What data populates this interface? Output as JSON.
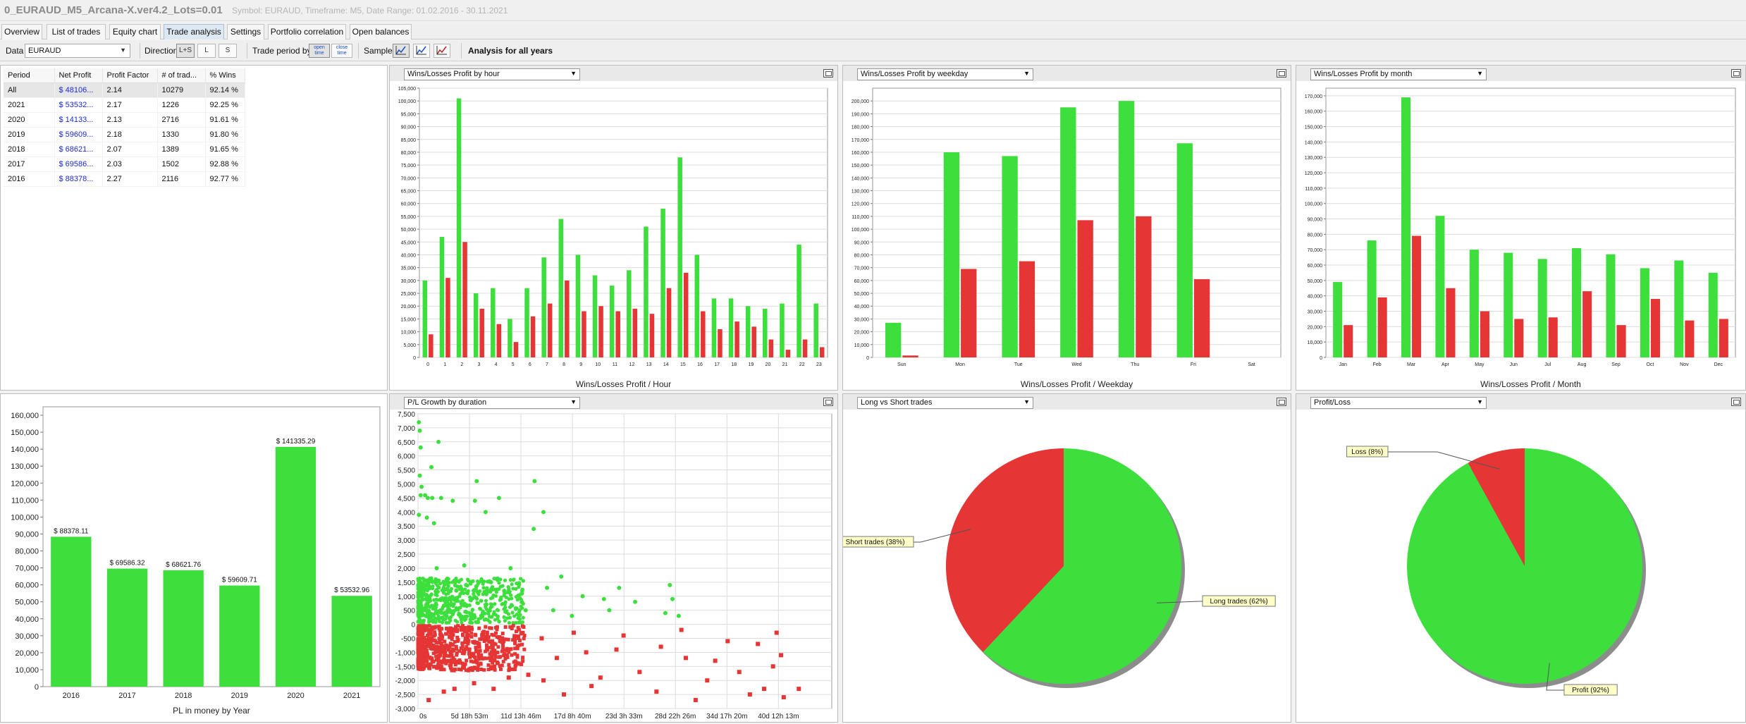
{
  "window": {
    "title": "0_EURAUD_M5_Arcana-X.ver4.2_Lots=0.01",
    "subtitle": "Symbol: EURAUD, Timeframe: M5, Date Range: 01.02.2016 - 30.11.2021"
  },
  "tabs": [
    {
      "label": "Overview"
    },
    {
      "label": "List of trades"
    },
    {
      "label": "Equity chart"
    },
    {
      "label": "Trade analysis",
      "active": true
    },
    {
      "label": "Settings"
    },
    {
      "label": "Portfolio correlation"
    },
    {
      "label": "Open balances"
    }
  ],
  "toolbar": {
    "data_label": "Data",
    "data_value": "EURAUD",
    "direction_label": "Direction",
    "directions": [
      "L+S",
      "L",
      "S"
    ],
    "trade_period_label": "Trade period by",
    "open_time": "open time",
    "close_time": "close time",
    "sample_label": "Sample",
    "analysis_title": "Analysis for all years"
  },
  "period_table": {
    "columns": [
      "Period",
      "Net Profit",
      "Profit Factor",
      "# of trad...",
      "% Wins"
    ],
    "rows": [
      [
        "All",
        "$ 48106...",
        "2.14",
        "10279",
        "92.14 %"
      ],
      [
        "2021",
        "$ 53532...",
        "2.17",
        "1226",
        "92.25 %"
      ],
      [
        "2020",
        "$ 14133...",
        "2.13",
        "2716",
        "91.61 %"
      ],
      [
        "2019",
        "$ 59609...",
        "2.18",
        "1330",
        "91.80 %"
      ],
      [
        "2018",
        "$ 68621...",
        "2.07",
        "1389",
        "91.65 %"
      ],
      [
        "2017",
        "$ 69586...",
        "2.03",
        "1502",
        "92.88 %"
      ],
      [
        "2016",
        "$ 88378...",
        "2.27",
        "2116",
        "92.77 %"
      ]
    ]
  },
  "colors": {
    "win": "#3ddf3d",
    "loss": "#e53535",
    "grid": "#dcdcdc"
  },
  "panels": {
    "hour": {
      "select": "Wins/Losses Profit by hour"
    },
    "weekday": {
      "select": "Wins/Losses Profit by weekday"
    },
    "month": {
      "select": "Wins/Losses Profit by month"
    },
    "duration": {
      "select": "P/L Growth by duration"
    },
    "longshort": {
      "select": "Long vs Short trades"
    },
    "profitloss": {
      "select": "Profit/Loss"
    }
  },
  "chart_data": [
    {
      "id": "hour",
      "type": "bar",
      "xlabel": "Wins/Losses Profit / Hour",
      "categories": [
        "0",
        "1",
        "2",
        "3",
        "4",
        "5",
        "6",
        "7",
        "8",
        "9",
        "10",
        "11",
        "12",
        "13",
        "14",
        "15",
        "16",
        "17",
        "18",
        "19",
        "20",
        "21",
        "22",
        "23"
      ],
      "series": [
        {
          "values": [
            30000,
            47000,
            101000,
            25000,
            27000,
            15000,
            27000,
            39000,
            54000,
            40000,
            32000,
            28000,
            34000,
            51000,
            58000,
            78000,
            40000,
            23000,
            23000,
            20000,
            19000,
            21000,
            44000,
            21000
          ]
        },
        {
          "values": [
            9000,
            31000,
            45000,
            19000,
            13000,
            6000,
            16000,
            21000,
            30000,
            18000,
            20000,
            18000,
            19000,
            17000,
            27000,
            33000,
            18000,
            11000,
            14000,
            12000,
            7000,
            3000,
            7000,
            4000
          ]
        }
      ],
      "ylim": [
        0,
        105000
      ],
      "yticks": [
        "0",
        "5,000",
        "10,000",
        "15,000",
        "20,000",
        "25,000",
        "30,000",
        "35,000",
        "40,000",
        "45,000",
        "50,000",
        "55,000",
        "60,000",
        "65,000",
        "70,000",
        "75,000",
        "80,000",
        "85,000",
        "90,000",
        "95,000",
        "100,000",
        "105,000"
      ]
    },
    {
      "id": "weekday",
      "type": "bar",
      "xlabel": "Wins/Losses Profit / Weekday",
      "categories": [
        "Sun",
        "Mon",
        "Tue",
        "Wed",
        "Thu",
        "Fri",
        "Sat"
      ],
      "series": [
        {
          "values": [
            27000,
            160000,
            157000,
            195000,
            200000,
            167000,
            0
          ]
        },
        {
          "values": [
            1500,
            69000,
            75000,
            107000,
            110000,
            61000,
            0
          ]
        }
      ],
      "ylim": [
        0,
        210000
      ],
      "yticks": [
        "0",
        "10,000",
        "20,000",
        "30,000",
        "40,000",
        "50,000",
        "60,000",
        "70,000",
        "80,000",
        "90,000",
        "100,000",
        "110,000",
        "120,000",
        "130,000",
        "140,000",
        "150,000",
        "160,000",
        "170,000",
        "180,000",
        "190,000",
        "200,000"
      ]
    },
    {
      "id": "month",
      "type": "bar",
      "xlabel": "Wins/Losses Profit / Month",
      "categories": [
        "Jan",
        "Feb",
        "Mar",
        "Apr",
        "May",
        "Jun",
        "Jul",
        "Aug",
        "Sep",
        "Oct",
        "Nov",
        "Dec"
      ],
      "series": [
        {
          "values": [
            49000,
            76000,
            169000,
            92000,
            70000,
            68000,
            64000,
            71000,
            67000,
            58000,
            63000,
            55000
          ]
        },
        {
          "values": [
            21000,
            39000,
            79000,
            45000,
            30000,
            25000,
            26000,
            43000,
            21000,
            38000,
            24000,
            25000
          ]
        }
      ],
      "ylim": [
        0,
        175000
      ],
      "yticks": [
        "0",
        "10,000",
        "20,000",
        "30,000",
        "40,000",
        "50,000",
        "60,000",
        "70,000",
        "80,000",
        "90,000",
        "100,000",
        "110,000",
        "120,000",
        "130,000",
        "140,000",
        "150,000",
        "160,000",
        "170,000"
      ]
    },
    {
      "id": "yearly",
      "type": "bar",
      "xlabel": "PL in money by Year",
      "categories": [
        "2016",
        "2017",
        "2018",
        "2019",
        "2020",
        "2021"
      ],
      "values": [
        88378.11,
        69586.32,
        68621.76,
        59609.71,
        141335.29,
        53532.96
      ],
      "data_labels": [
        "$ 88378.11",
        "$ 69586.32",
        "$ 68621.76",
        "$ 59609.71",
        "$ 141335.29",
        "$ 53532.96"
      ],
      "ylim": [
        0,
        165000
      ],
      "yticks": [
        "0",
        "10,000",
        "20,000",
        "30,000",
        "40,000",
        "50,000",
        "60,000",
        "70,000",
        "80,000",
        "90,000",
        "100,000",
        "110,000",
        "120,000",
        "130,000",
        "140,000",
        "150,000",
        "160,000"
      ]
    },
    {
      "id": "duration",
      "type": "scatter",
      "xticks": [
        "0s",
        "5d 18h 53m",
        "11d 13h 46m",
        "17d 8h 40m",
        "23d 3h 33m",
        "28d 22h 26m",
        "34d 17h 20m",
        "40d 12h 13m"
      ],
      "ylim": [
        -3000,
        7500
      ],
      "yticks": [
        "-3,000",
        "-2,500",
        "-2,000",
        "-1,500",
        "-1,000",
        "-500",
        "0",
        "500",
        "1,000",
        "1,500",
        "2,000",
        "2,500",
        "3,000",
        "3,500",
        "4,000",
        "4,500",
        "5,000",
        "5,500",
        "6,000",
        "6,500",
        "7,000",
        "7,500"
      ],
      "wins": [
        [
          0.1,
          7200
        ],
        [
          0.2,
          6900
        ],
        [
          0.3,
          6300
        ],
        [
          2.3,
          6500
        ],
        [
          0.2,
          5300
        ],
        [
          1.5,
          5600
        ],
        [
          0.4,
          4900
        ],
        [
          0.8,
          4600
        ],
        [
          1.1,
          4500
        ],
        [
          1.6,
          4500
        ],
        [
          3.9,
          4400
        ],
        [
          2.6,
          4500
        ],
        [
          6.6,
          5100
        ],
        [
          6.4,
          4400
        ],
        [
          9.1,
          4500
        ],
        [
          13.1,
          5100
        ],
        [
          14.1,
          4000
        ],
        [
          13,
          3400
        ],
        [
          1,
          3800
        ],
        [
          7.6,
          4000
        ],
        [
          1.8,
          3600
        ],
        [
          0.1,
          3900
        ],
        [
          0.3,
          4600
        ],
        [
          2.1,
          2000
        ],
        [
          5.2,
          2100
        ],
        [
          10.4,
          2000
        ],
        [
          16.1,
          1700
        ],
        [
          22.6,
          1300
        ],
        [
          28.3,
          1400
        ],
        [
          4.3,
          1200
        ],
        [
          5.4,
          1400
        ],
        [
          8.2,
          1500
        ],
        [
          11.7,
          1200
        ],
        [
          14.5,
          1300
        ],
        [
          18.5,
          1000
        ],
        [
          20.9,
          900
        ],
        [
          24.4,
          800
        ],
        [
          28.6,
          900
        ],
        [
          7.6,
          700
        ],
        [
          9.3,
          900
        ],
        [
          12.1,
          500
        ],
        [
          15.2,
          500
        ],
        [
          17.3,
          300
        ],
        [
          21.5,
          500
        ],
        [
          27.8,
          400
        ],
        [
          29.3,
          300
        ]
      ],
      "losses": [
        [
          1.2,
          -2700
        ],
        [
          2.9,
          -2400
        ],
        [
          4.1,
          -2300
        ],
        [
          6.3,
          -2100
        ],
        [
          8.5,
          -2300
        ],
        [
          10.2,
          -1900
        ],
        [
          12.4,
          -1800
        ],
        [
          14.1,
          -2000
        ],
        [
          16.4,
          -2500
        ],
        [
          19.5,
          -2200
        ],
        [
          20.5,
          -1900
        ],
        [
          24.9,
          -1700
        ],
        [
          26.8,
          -2400
        ],
        [
          31.2,
          -2700
        ],
        [
          37.3,
          -2500
        ],
        [
          38.9,
          -2300
        ],
        [
          41.1,
          -2600
        ],
        [
          32.5,
          -2000
        ],
        [
          36.1,
          -1700
        ],
        [
          39.9,
          -1500
        ],
        [
          42.8,
          -2300
        ],
        [
          11.3,
          -1400
        ],
        [
          15.6,
          -1200
        ],
        [
          18.9,
          -1000
        ],
        [
          22.3,
          -900
        ],
        [
          27.3,
          -800
        ],
        [
          30.1,
          -1200
        ],
        [
          33.4,
          -1300
        ],
        [
          38.2,
          -700
        ],
        [
          40.8,
          -1100
        ],
        [
          9.6,
          -600
        ],
        [
          13.9,
          -500
        ],
        [
          17.5,
          -300
        ],
        [
          23.1,
          -400
        ],
        [
          29.6,
          -200
        ],
        [
          34.8,
          -600
        ],
        [
          40.3,
          -300
        ]
      ]
    },
    {
      "id": "longshort",
      "type": "pie",
      "labels": [
        "Long trades (62%)",
        "Short trades (38%)"
      ],
      "values": [
        62,
        38
      ]
    },
    {
      "id": "profitloss",
      "type": "pie",
      "labels": [
        "Profit (92%)",
        "Loss (8%)"
      ],
      "values": [
        92,
        8
      ]
    }
  ]
}
